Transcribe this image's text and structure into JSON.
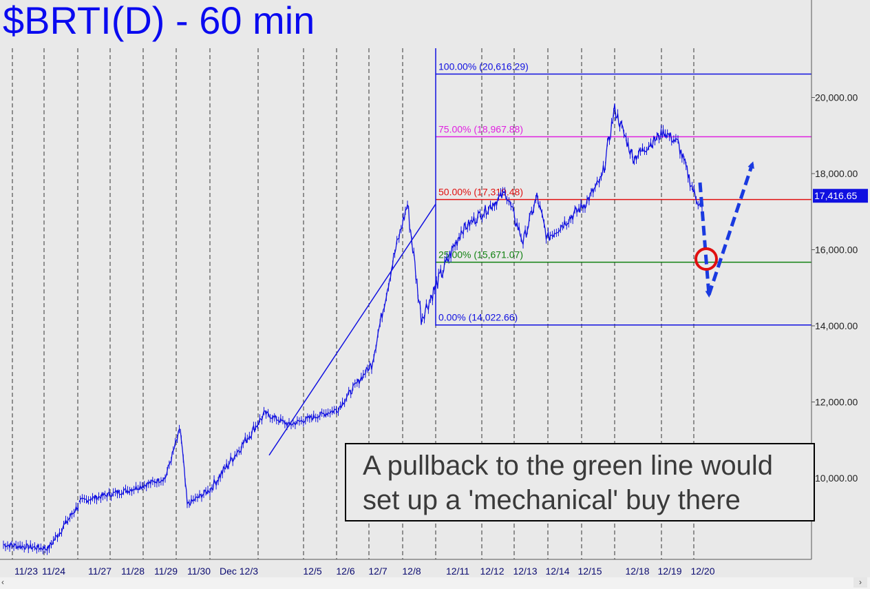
{
  "title": "$BRTI(D) - 60 min",
  "annotation": {
    "line1": "A pullback to the green line would",
    "line2": "set up a 'mechanical' buy there"
  },
  "nav": {
    "scroll_left": "‹",
    "scroll_right": "›"
  },
  "colors": {
    "background": "#e9e9e9",
    "price": "#1010e0",
    "fib_100": "#1010e0",
    "fib_75": "#e020e0",
    "fib_50": "#e01010",
    "fib_25": "#108010",
    "fib_0": "#1010e0",
    "target_circle": "#e01010",
    "projection": "#1a3ae0"
  },
  "chart_data": {
    "type": "line",
    "title": "$BRTI(D) - 60 min",
    "xlabel": "",
    "ylabel": "",
    "ylim": [
      8500,
      22000
    ],
    "grid": "vertical dashed day separators",
    "y_ticks": [
      "10,000.00",
      "12,000.00",
      "14,000.00",
      "16,000.00",
      "18,000.00",
      "20,000.00"
    ],
    "last_price": "17,416.65",
    "x_labels": [
      "11/23",
      "11/24",
      "11/27",
      "11/28",
      "11/29",
      "11/30",
      "Dec 12/3",
      "12/5",
      "12/6",
      "12/7",
      "12/8",
      "12/11",
      "12/12",
      "12/13",
      "12/14",
      "12/15",
      "12/18",
      "12/19",
      "12/20"
    ],
    "fib_levels": [
      {
        "label": "100.00% (20,616.29)",
        "value": 20616.29,
        "color": "#1010e0"
      },
      {
        "label": "75.00% (18,967.88)",
        "value": 18967.88,
        "color": "#e020e0"
      },
      {
        "label": "50.00% (17,319.48)",
        "value": 17319.48,
        "color": "#e01010"
      },
      {
        "label": "25.00% (15,671.07)",
        "value": 15671.07,
        "color": "#108010"
      },
      {
        "label": "0.00% (14,022.66)",
        "value": 14022.66,
        "color": "#1010e0"
      }
    ],
    "series": [
      {
        "x": [
          "11/23",
          "11/24",
          "11/27",
          "11/28",
          "11/29",
          "11/29",
          "11/30",
          "11/30",
          "Dec 12/3",
          "12/5",
          "12/6",
          "12/7",
          "12/7",
          "12/8",
          "12/8",
          "12/11",
          "12/11",
          "12/12",
          "12/13",
          "12/13",
          "12/14",
          "12/15",
          "12/15",
          "12/18",
          "12/18",
          "12/19",
          "12/19",
          "12/20",
          "12/20"
        ],
        "values": [
          8250,
          8150,
          9400,
          9700,
          10000,
          11300,
          9300,
          9700,
          11700,
          11400,
          11800,
          13000,
          15800,
          17200,
          14200,
          16500,
          16800,
          17500,
          16200,
          17400,
          16300,
          17200,
          17900,
          19700,
          18400,
          19100,
          18800,
          17400,
          17100
        ]
      }
    ],
    "swing_line": {
      "from": {
        "x": "Dec 12/3",
        "y": 10600
      },
      "to": {
        "x": "12/8",
        "y": 17200
      }
    },
    "projection": [
      {
        "x": "12/20",
        "y": 17600
      },
      {
        "x": "12/20",
        "y": 14900
      },
      {
        "x": "12/20",
        "y": 18300
      }
    ],
    "target": {
      "x": "12/20",
      "y": 15700
    }
  }
}
